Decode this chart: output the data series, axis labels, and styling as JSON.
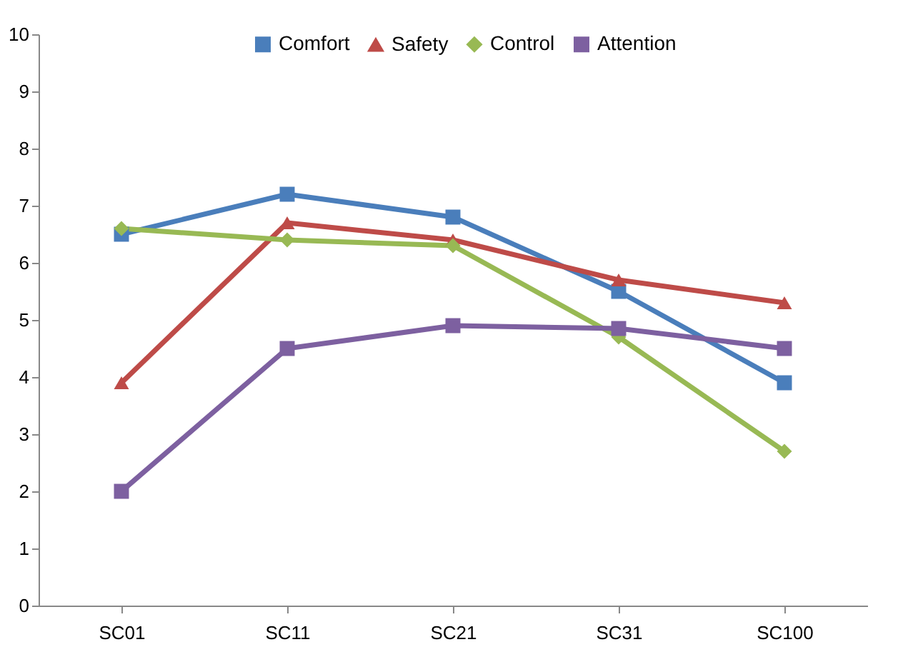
{
  "chart_data": {
    "type": "line",
    "categories": [
      "SC01",
      "SC11",
      "SC21",
      "SC31",
      "SC100"
    ],
    "series": [
      {
        "name": "Comfort",
        "color": "#4a7ebb",
        "marker": "square",
        "values": [
          6.5,
          7.2,
          6.8,
          5.5,
          3.9
        ]
      },
      {
        "name": "Safety",
        "color": "#be4b48",
        "marker": "triangle",
        "values": [
          3.9,
          6.7,
          6.4,
          5.7,
          5.3
        ]
      },
      {
        "name": "Control",
        "color": "#98b954",
        "marker": "diamond",
        "values": [
          6.6,
          6.4,
          6.3,
          4.7,
          2.7
        ]
      },
      {
        "name": "Attention",
        "color": "#7d60a0",
        "marker": "square",
        "values": [
          2.0,
          4.5,
          4.9,
          4.85,
          4.5
        ]
      }
    ],
    "ylim": [
      0,
      10
    ],
    "yticks": [
      0,
      1,
      2,
      3,
      4,
      5,
      6,
      7,
      8,
      9,
      10
    ],
    "grid": false,
    "legend": "top",
    "line_style": "solid"
  }
}
